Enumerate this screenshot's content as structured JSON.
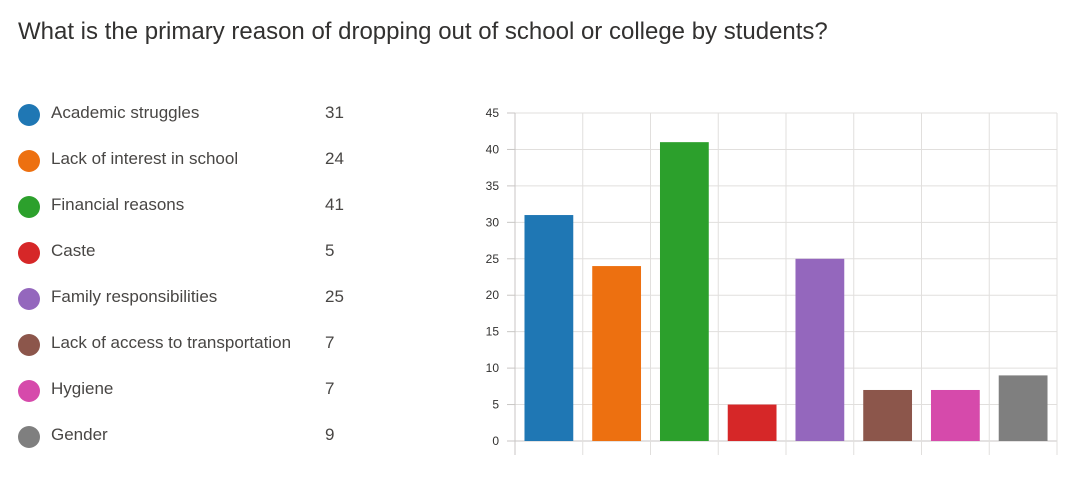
{
  "title": "What is the primary reason of dropping out of school or college by students?",
  "chart_data": {
    "type": "bar",
    "title": "What is the primary reason of dropping out of school or college by students?",
    "categories": [
      "Academic struggles",
      "Lack of interest in school",
      "Financial reasons",
      "Caste",
      "Family responsibilities",
      "Lack of access to transportation",
      "Hygiene",
      "Gender"
    ],
    "values": [
      31,
      24,
      41,
      5,
      25,
      7,
      7,
      9
    ],
    "colors": [
      "#1f77b4",
      "#ed7010",
      "#2ca02c",
      "#d62728",
      "#9467bd",
      "#8c564b",
      "#d64aab",
      "#7f7f7f"
    ],
    "ylim": [
      0,
      45
    ],
    "yticks": [
      0,
      5,
      10,
      15,
      20,
      25,
      30,
      35,
      40,
      45
    ],
    "grid": true,
    "legend": "left"
  }
}
